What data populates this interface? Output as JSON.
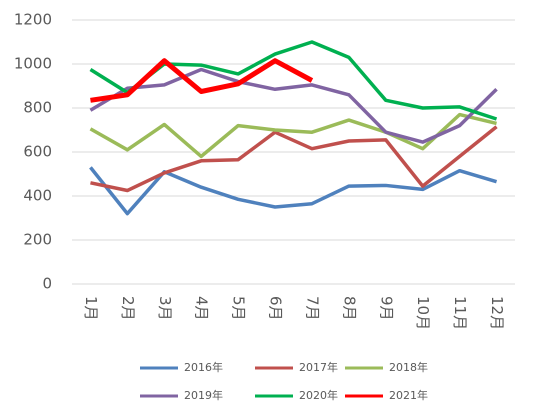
{
  "chart_data": {
    "type": "line",
    "categories": [
      "1月",
      "2月",
      "3月",
      "4月",
      "5月",
      "6月",
      "7月",
      "8月",
      "9月",
      "10月",
      "11月",
      "12月"
    ],
    "ylim": [
      0,
      1200
    ],
    "yticks": [
      0,
      200,
      400,
      600,
      800,
      1000,
      1200
    ],
    "grid": true,
    "legend": "bottom",
    "series": [
      {
        "name": "2016年",
        "color": "#4f81bd",
        "values": [
          530,
          320,
          510,
          440,
          385,
          350,
          365,
          445,
          448,
          430,
          515,
          465
        ]
      },
      {
        "name": "2017年",
        "color": "#c0504d",
        "values": [
          460,
          425,
          505,
          560,
          565,
          690,
          615,
          650,
          655,
          445,
          580,
          715
        ]
      },
      {
        "name": "2018年",
        "color": "#9bbb59",
        "values": [
          705,
          610,
          725,
          580,
          720,
          700,
          690,
          745,
          690,
          615,
          770,
          730
        ]
      },
      {
        "name": "2019年",
        "color": "#8064a2",
        "values": [
          790,
          890,
          905,
          975,
          920,
          885,
          905,
          860,
          690,
          645,
          720,
          885
        ]
      },
      {
        "name": "2020年",
        "color": "#00b050",
        "values": [
          975,
          870,
          1000,
          995,
          955,
          1045,
          1100,
          1030,
          835,
          800,
          805,
          750
        ]
      },
      {
        "name": "2021年",
        "color": "#ff0000",
        "values": [
          835,
          860,
          1015,
          875,
          910,
          1015,
          925,
          null,
          null,
          null,
          null,
          null
        ]
      }
    ]
  }
}
